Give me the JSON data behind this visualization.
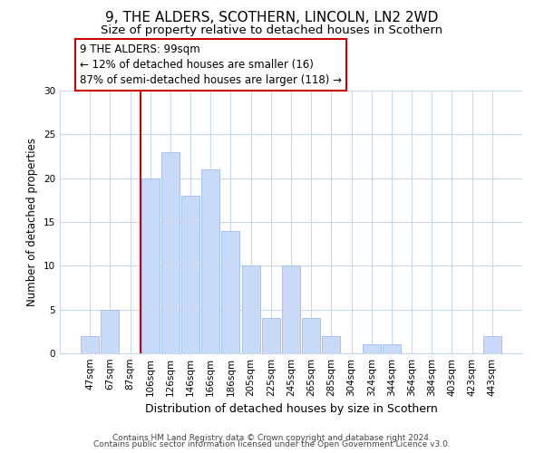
{
  "title": "9, THE ALDERS, SCOTHERN, LINCOLN, LN2 2WD",
  "subtitle": "Size of property relative to detached houses in Scothern",
  "xlabel": "Distribution of detached houses by size in Scothern",
  "ylabel": "Number of detached properties",
  "bin_labels": [
    "47sqm",
    "67sqm",
    "87sqm",
    "106sqm",
    "126sqm",
    "146sqm",
    "166sqm",
    "186sqm",
    "205sqm",
    "225sqm",
    "245sqm",
    "265sqm",
    "285sqm",
    "304sqm",
    "324sqm",
    "344sqm",
    "364sqm",
    "384sqm",
    "403sqm",
    "423sqm",
    "443sqm"
  ],
  "bar_values": [
    2,
    5,
    0,
    20,
    23,
    18,
    21,
    14,
    10,
    4,
    10,
    4,
    2,
    0,
    1,
    1,
    0,
    0,
    0,
    0,
    2
  ],
  "bar_color": "#c9daf8",
  "bar_edge_color": "#a4c2f4",
  "reference_line_x_label": "87sqm",
  "reference_line_color": "#cc0000",
  "annotation_text": "9 THE ALDERS: 99sqm\n← 12% of detached houses are smaller (16)\n87% of semi-detached houses are larger (118) →",
  "annotation_box_edge_color": "#cc0000",
  "annotation_box_face_color": "#ffffff",
  "ylim": [
    0,
    30
  ],
  "yticks": [
    0,
    5,
    10,
    15,
    20,
    25,
    30
  ],
  "footer_line1": "Contains HM Land Registry data © Crown copyright and database right 2024.",
  "footer_line2": "Contains public sector information licensed under the Open Government Licence v3.0.",
  "title_fontsize": 11,
  "subtitle_fontsize": 9.5,
  "xlabel_fontsize": 9,
  "ylabel_fontsize": 8.5,
  "tick_fontsize": 7.5,
  "annotation_fontsize": 8.5,
  "footer_fontsize": 6.5,
  "background_color": "#ffffff",
  "grid_color": "#c8d8ec"
}
